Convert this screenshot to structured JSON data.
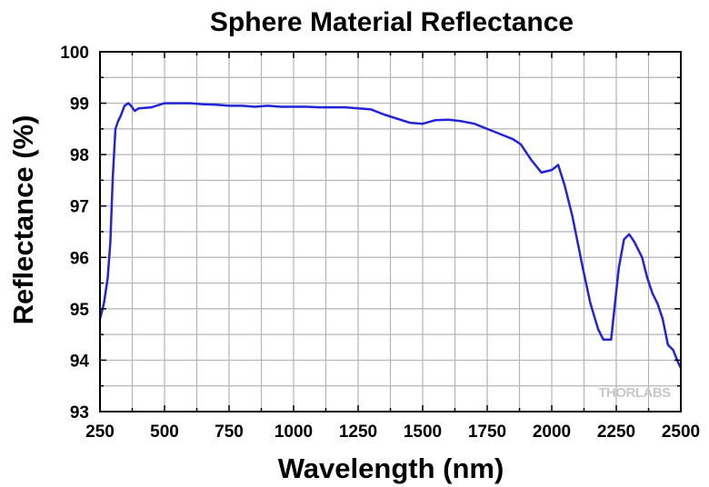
{
  "chart_data": {
    "type": "line",
    "title": "Sphere Material Reflectance",
    "xlabel": "Wavelength (nm)",
    "ylabel": "Reflectance (%)",
    "xlim": [
      250,
      2500
    ],
    "ylim": [
      93,
      100
    ],
    "xticks": [
      250,
      500,
      750,
      1000,
      1250,
      1500,
      1750,
      2000,
      2250,
      2500
    ],
    "yticks": [
      93,
      94,
      95,
      96,
      97,
      98,
      99,
      100
    ],
    "x_minor_step": 125,
    "y_minor_step": 0.5,
    "grid": true,
    "watermark": "THORLABS",
    "colors": {
      "line": "#2323d8",
      "grid": "#b4b4b4",
      "axes": "#000000"
    },
    "series": [
      {
        "x": [
          250,
          265,
          280,
          290,
          300,
          310,
          320,
          330,
          345,
          360,
          370,
          385,
          400,
          450,
          500,
          550,
          600,
          650,
          700,
          750,
          800,
          850,
          900,
          950,
          1000,
          1050,
          1100,
          1150,
          1200,
          1250,
          1300,
          1350,
          1400,
          1450,
          1500,
          1550,
          1600,
          1650,
          1700,
          1750,
          1800,
          1850,
          1880,
          1920,
          1960,
          2000,
          2025,
          2050,
          2080,
          2100,
          2120,
          2150,
          2180,
          2200,
          2230,
          2260,
          2280,
          2300,
          2320,
          2350,
          2370,
          2390,
          2410,
          2430,
          2450,
          2470,
          2490,
          2500
        ],
        "y": [
          94.8,
          95.1,
          95.6,
          96.3,
          97.6,
          98.5,
          98.65,
          98.75,
          98.95,
          99.0,
          98.95,
          98.85,
          98.9,
          98.92,
          99.0,
          99.0,
          99.0,
          98.98,
          98.97,
          98.95,
          98.95,
          98.93,
          98.95,
          98.93,
          98.93,
          98.93,
          98.92,
          98.92,
          98.92,
          98.9,
          98.88,
          98.78,
          98.7,
          98.62,
          98.6,
          98.67,
          98.68,
          98.65,
          98.6,
          98.5,
          98.4,
          98.3,
          98.2,
          97.9,
          97.65,
          97.7,
          97.8,
          97.4,
          96.8,
          96.3,
          95.8,
          95.1,
          94.6,
          94.4,
          94.4,
          95.8,
          96.35,
          96.45,
          96.3,
          96.0,
          95.6,
          95.3,
          95.1,
          94.8,
          94.3,
          94.2,
          93.95,
          93.85
        ]
      }
    ]
  }
}
